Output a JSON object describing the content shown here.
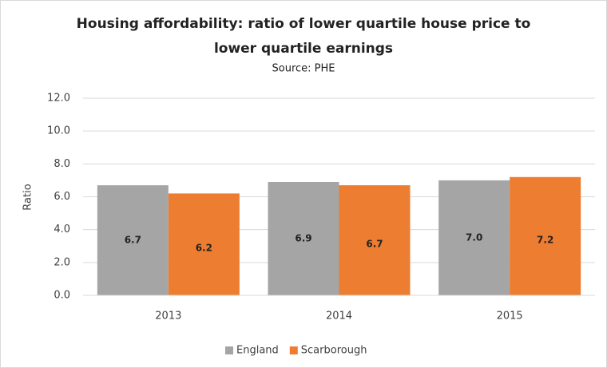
{
  "chart_data": {
    "type": "bar",
    "title": [
      "Housing affordability: ratio of lower quartile house price to",
      "lower quartile earnings"
    ],
    "subtitle": "Source: PHE",
    "y_label": "Ratio",
    "categories": [
      "2013",
      "2014",
      "2015"
    ],
    "series": [
      {
        "name": "England",
        "color": "#a5a5a5",
        "values": [
          6.7,
          6.9,
          7.0
        ],
        "value_labels": [
          "6.7",
          "6.9",
          "7.0"
        ]
      },
      {
        "name": "Scarborough",
        "color": "#ed7d31",
        "values": [
          6.2,
          6.7,
          7.2
        ],
        "value_labels": [
          "6.2",
          "6.7",
          "7.2"
        ]
      }
    ],
    "ylim": [
      0,
      12
    ],
    "yticks": [
      {
        "value": 0,
        "label": "0.0"
      },
      {
        "value": 2,
        "label": "2.0"
      },
      {
        "value": 4,
        "label": "4.0"
      },
      {
        "value": 6,
        "label": "6.0"
      },
      {
        "value": 8,
        "label": "8.0"
      },
      {
        "value": 10,
        "label": "10.0"
      },
      {
        "value": 12,
        "label": "12.0"
      }
    ],
    "grid": true,
    "legend": "bottom"
  }
}
